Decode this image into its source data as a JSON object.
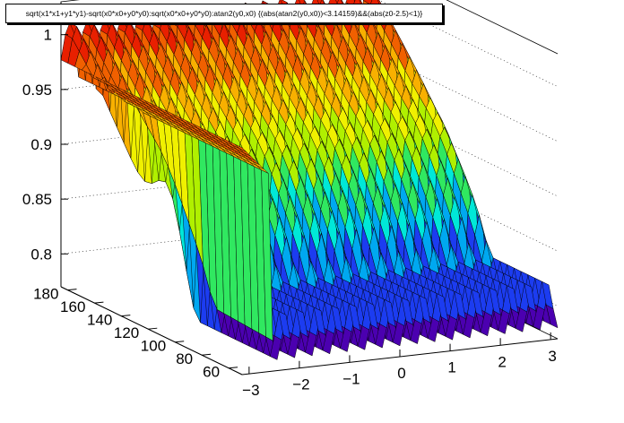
{
  "title": "sqrt(x1*x1+y1*y1)-sqrt(x0*x0+y0*y0):sqrt(x0*x0+y0*y0):atan2(y0,x0) {(abs(atan2(y0,x0))<3.14159)&&(abs(z0-2.5)<1)}",
  "chart_data": {
    "type": "surface",
    "title": "sqrt(x1*x1+y1*y1)-sqrt(x0*x0+y0*y0):sqrt(x0*x0+y0*y0):atan2(y0,x0) {(abs(atan2(y0,x0))<3.14159)&&(abs(z0-2.5)<1)}",
    "xlabel": "",
    "ylabel": "",
    "zlabel": "",
    "xlim": [
      -3.14,
      3.14
    ],
    "ylim": [
      50,
      185
    ],
    "zlim": [
      0.77,
      1.03
    ],
    "x_ticks": [
      "−3",
      "−2",
      "−1",
      "0",
      "1",
      "2",
      "3"
    ],
    "x_tick_values": [
      -3,
      -2,
      -1,
      0,
      1,
      2,
      3
    ],
    "y_ticks": [
      "60",
      "80",
      "100",
      "120",
      "140",
      "160",
      "180"
    ],
    "y_tick_values": [
      60,
      80,
      100,
      120,
      140,
      160,
      180
    ],
    "z_ticks": [
      "0.8",
      "0.85",
      "0.9",
      "0.95",
      "1"
    ],
    "z_tick_values": [
      0.8,
      0.85,
      0.9,
      0.95,
      1.0
    ],
    "grid": true,
    "palette": [
      "#4b00b0",
      "#1c3cf0",
      "#00a8f0",
      "#00e8d8",
      "#30e860",
      "#b0f000",
      "#f0f000",
      "#f8b000",
      "#f06000",
      "#e82000",
      "#d80000"
    ],
    "surface": {
      "description_free": true,
      "n_phi": 18,
      "ridge_low_r": 95,
      "ridge_high_r": 180,
      "min_z": 0.78,
      "max_z": 1.02
    }
  }
}
